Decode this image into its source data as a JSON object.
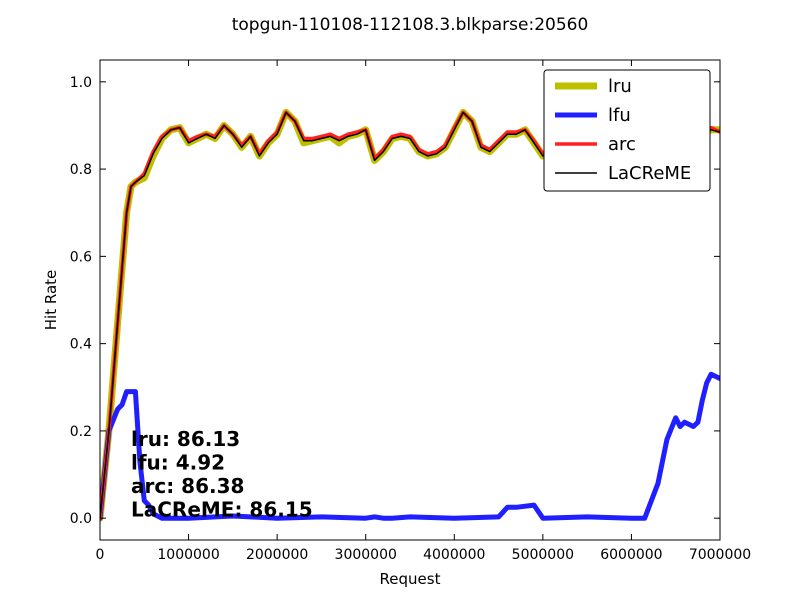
{
  "chart_data": {
    "type": "line",
    "title": "topgun-110108-112108.3.blkparse:20560",
    "xlabel": "Request",
    "ylabel": "Hit Rate",
    "xlim": [
      0,
      7000000
    ],
    "ylim": [
      -0.05,
      1.05
    ],
    "xticks": [
      0,
      1000000,
      2000000,
      3000000,
      4000000,
      5000000,
      6000000,
      7000000
    ],
    "yticks": [
      0.0,
      0.2,
      0.4,
      0.6,
      0.8,
      1.0
    ],
    "xtick_labels": [
      "0",
      "1000000",
      "2000000",
      "3000000",
      "4000000",
      "5000000",
      "6000000",
      "7000000"
    ],
    "ytick_labels": [
      "0.0",
      "0.2",
      "0.4",
      "0.6",
      "0.8",
      "1.0"
    ],
    "grid": false,
    "legend_position": "top-right",
    "series": [
      {
        "name": "lru",
        "color": "#bfbf00",
        "width": 7,
        "x": [
          0,
          100000,
          200000,
          300000,
          350000,
          400000,
          500000,
          600000,
          700000,
          800000,
          900000,
          1000000,
          1100000,
          1200000,
          1300000,
          1400000,
          1500000,
          1600000,
          1700000,
          1800000,
          1900000,
          2000000,
          2100000,
          2200000,
          2300000,
          2400000,
          2500000,
          2600000,
          2700000,
          2800000,
          2900000,
          3000000,
          3100000,
          3200000,
          3300000,
          3400000,
          3500000,
          3600000,
          3700000,
          3800000,
          3900000,
          4000000,
          4100000,
          4200000,
          4300000,
          4400000,
          4500000,
          4600000,
          4700000,
          4800000,
          4900000,
          5000000,
          5100000,
          5200000,
          5300000,
          5400000,
          5500000,
          5600000,
          5700000,
          5800000,
          5900000,
          6000000,
          6100000,
          6200000,
          6300000,
          6400000,
          6500000,
          6600000,
          6700000,
          6800000,
          6900000,
          7000000
        ],
        "y": [
          0.0,
          0.2,
          0.45,
          0.7,
          0.76,
          0.77,
          0.78,
          0.83,
          0.87,
          0.89,
          0.895,
          0.86,
          0.87,
          0.88,
          0.87,
          0.9,
          0.88,
          0.85,
          0.875,
          0.83,
          0.86,
          0.88,
          0.93,
          0.91,
          0.86,
          0.865,
          0.87,
          0.875,
          0.86,
          0.875,
          0.88,
          0.89,
          0.82,
          0.84,
          0.87,
          0.875,
          0.87,
          0.84,
          0.83,
          0.835,
          0.85,
          0.89,
          0.93,
          0.91,
          0.85,
          0.84,
          0.86,
          0.88,
          0.88,
          0.89,
          0.86,
          0.83,
          0.84,
          0.85,
          0.88,
          0.92,
          0.91,
          0.86,
          0.82,
          0.85,
          0.87,
          0.84,
          0.86,
          0.85,
          0.83,
          0.84,
          0.86,
          0.88,
          0.89,
          0.88,
          0.89,
          0.89
        ]
      },
      {
        "name": "lfu",
        "color": "#1f1fff",
        "width": 5,
        "x": [
          0,
          100000,
          200000,
          250000,
          300000,
          400000,
          450000,
          500000,
          550000,
          600000,
          700000,
          1000000,
          1500000,
          2000000,
          2500000,
          3000000,
          3100000,
          3200000,
          3300000,
          3500000,
          4000000,
          4500000,
          4600000,
          4700000,
          4900000,
          5000000,
          5500000,
          6000000,
          6150000,
          6300000,
          6400000,
          6500000,
          6550000,
          6600000,
          6700000,
          6750000,
          6800000,
          6850000,
          6900000,
          7000000
        ],
        "y": [
          0.0,
          0.2,
          0.25,
          0.26,
          0.29,
          0.29,
          0.13,
          0.04,
          0.03,
          0.01,
          0.0,
          0.0,
          0.005,
          0.0,
          0.003,
          0.0,
          0.003,
          0.0,
          0.0,
          0.003,
          0.0,
          0.003,
          0.025,
          0.025,
          0.03,
          0.0,
          0.003,
          0.0,
          0.0,
          0.08,
          0.18,
          0.23,
          0.21,
          0.22,
          0.21,
          0.22,
          0.27,
          0.31,
          0.33,
          0.32
        ]
      },
      {
        "name": "arc",
        "color": "#ff2020",
        "width": 3.5,
        "x": [
          0,
          100000,
          200000,
          300000,
          350000,
          400000,
          500000,
          600000,
          700000,
          800000,
          900000,
          1000000,
          1100000,
          1200000,
          1300000,
          1400000,
          1500000,
          1600000,
          1700000,
          1800000,
          1900000,
          2000000,
          2100000,
          2200000,
          2300000,
          2400000,
          2500000,
          2600000,
          2700000,
          2800000,
          2900000,
          3000000,
          3100000,
          3200000,
          3300000,
          3400000,
          3500000,
          3600000,
          3700000,
          3800000,
          3900000,
          4000000,
          4100000,
          4200000,
          4300000,
          4400000,
          4500000,
          4600000,
          4700000,
          4800000,
          4900000,
          5000000,
          5100000,
          5200000,
          5300000,
          5400000,
          5500000,
          5600000,
          5700000,
          5800000,
          5900000,
          6000000,
          6100000,
          6200000,
          6300000,
          6400000,
          6500000,
          6600000,
          6700000,
          6800000,
          6900000,
          7000000
        ],
        "y": [
          0.0,
          0.2,
          0.45,
          0.7,
          0.76,
          0.77,
          0.79,
          0.84,
          0.875,
          0.89,
          0.895,
          0.865,
          0.875,
          0.88,
          0.875,
          0.9,
          0.88,
          0.855,
          0.875,
          0.835,
          0.865,
          0.885,
          0.93,
          0.91,
          0.87,
          0.87,
          0.875,
          0.88,
          0.87,
          0.88,
          0.885,
          0.89,
          0.825,
          0.845,
          0.875,
          0.88,
          0.875,
          0.845,
          0.835,
          0.84,
          0.855,
          0.895,
          0.93,
          0.91,
          0.855,
          0.845,
          0.865,
          0.885,
          0.885,
          0.89,
          0.865,
          0.835,
          0.845,
          0.855,
          0.885,
          0.92,
          0.91,
          0.865,
          0.825,
          0.855,
          0.875,
          0.845,
          0.865,
          0.855,
          0.835,
          0.845,
          0.865,
          0.885,
          0.895,
          0.885,
          0.895,
          0.885
        ]
      },
      {
        "name": "LaCReME",
        "color": "#000000",
        "width": 1.5,
        "x": [
          0,
          100000,
          200000,
          300000,
          350000,
          400000,
          500000,
          600000,
          700000,
          800000,
          900000,
          1000000,
          1100000,
          1200000,
          1300000,
          1400000,
          1500000,
          1600000,
          1700000,
          1800000,
          1900000,
          2000000,
          2100000,
          2200000,
          2300000,
          2400000,
          2500000,
          2600000,
          2700000,
          2800000,
          2900000,
          3000000,
          3100000,
          3200000,
          3300000,
          3400000,
          3500000,
          3600000,
          3700000,
          3800000,
          3900000,
          4000000,
          4100000,
          4200000,
          4300000,
          4400000,
          4500000,
          4600000,
          4700000,
          4800000,
          4900000,
          5000000,
          5100000,
          5200000,
          5300000,
          5400000,
          5500000,
          5600000,
          5700000,
          5800000,
          5900000,
          6000000,
          6100000,
          6200000,
          6300000,
          6400000,
          6500000,
          6600000,
          6700000,
          6800000,
          6900000,
          7000000
        ],
        "y": [
          0.0,
          0.2,
          0.45,
          0.7,
          0.76,
          0.77,
          0.785,
          0.835,
          0.87,
          0.89,
          0.895,
          0.86,
          0.87,
          0.88,
          0.87,
          0.9,
          0.88,
          0.85,
          0.875,
          0.83,
          0.86,
          0.88,
          0.93,
          0.91,
          0.865,
          0.865,
          0.87,
          0.875,
          0.865,
          0.875,
          0.88,
          0.89,
          0.82,
          0.84,
          0.87,
          0.875,
          0.87,
          0.84,
          0.83,
          0.835,
          0.85,
          0.89,
          0.93,
          0.91,
          0.85,
          0.84,
          0.86,
          0.88,
          0.88,
          0.89,
          0.86,
          0.83,
          0.84,
          0.85,
          0.88,
          0.92,
          0.91,
          0.86,
          0.82,
          0.85,
          0.87,
          0.84,
          0.86,
          0.85,
          0.83,
          0.84,
          0.86,
          0.88,
          0.89,
          0.88,
          0.89,
          0.885
        ]
      }
    ],
    "annotations": [
      "lru:  86.13",
      "lfu:  4.92",
      "arc:  86.38",
      "LaCReME:  86.15"
    ]
  }
}
